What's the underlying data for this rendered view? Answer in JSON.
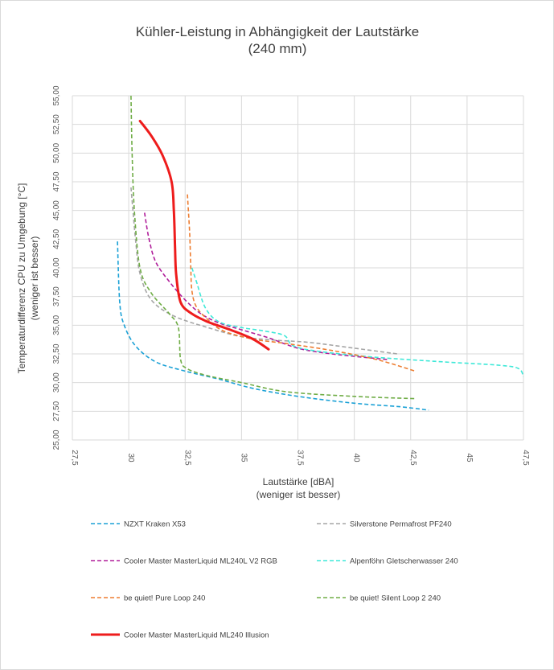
{
  "chart_data": {
    "type": "line",
    "title": "Kühler-Leistung in Abhängigkeit der Lautstärke",
    "subtitle": "(240 mm)",
    "xlabel": "Lautstärke [dBA]",
    "xlabel_note": "(weniger ist besser)",
    "ylabel": "Temperaturdifferenz  CPU zu Umgebung  [°C]",
    "ylabel_note": "(weniger ist besser)",
    "xlim": [
      27.5,
      47.5
    ],
    "ylim": [
      25,
      55
    ],
    "x_ticks": [
      "27,5",
      "30",
      "32,5",
      "35",
      "37,5",
      "40",
      "42,5",
      "45",
      "47,5"
    ],
    "y_ticks": [
      "25,00",
      "27,50",
      "30,00",
      "32,50",
      "35,00",
      "37,50",
      "40,00",
      "42,50",
      "45,00",
      "47,50",
      "50,00",
      "52,50",
      "55,00"
    ],
    "grid": true,
    "legend_position": "bottom",
    "series": [
      {
        "name": "NZXT Kraken X53",
        "color": "#1ba1d6",
        "dash": true,
        "x": [
          29.5,
          29.6,
          29.8,
          30.3,
          31.2,
          32.5,
          34.0,
          35.5,
          37.5,
          40.0,
          42.0,
          43.3
        ],
        "y": [
          42.3,
          37.0,
          35.0,
          33.2,
          31.8,
          31.0,
          30.3,
          29.5,
          28.8,
          28.2,
          27.9,
          27.6
        ]
      },
      {
        "name": "Silverstone Permafrost PF240",
        "color": "#a6a6a6",
        "dash": true,
        "x": [
          30.1,
          30.3,
          30.5,
          31.0,
          32.0,
          33.5,
          35.0,
          36.5,
          38.0,
          40.0,
          41.9
        ],
        "y": [
          47.0,
          42.5,
          39.5,
          37.2,
          35.8,
          34.8,
          34.0,
          33.7,
          33.5,
          33.0,
          32.5
        ]
      },
      {
        "name": "Cooler Master MasterLiquid ML240L V2 RGB",
        "color": "#b01e9a",
        "dash": true,
        "x": [
          30.7,
          30.9,
          31.2,
          31.8,
          32.5,
          33.2,
          34.0,
          35.0,
          36.2,
          37.5,
          39.0,
          41.5
        ],
        "y": [
          44.8,
          42.5,
          40.5,
          38.8,
          37.2,
          36.0,
          35.2,
          34.6,
          33.9,
          33.0,
          32.5,
          32.0
        ]
      },
      {
        "name": "Alpenföhn Gletscherwasser 240",
        "color": "#3ee8d8",
        "dash": true,
        "x": [
          32.8,
          33.0,
          33.4,
          34.0,
          35.0,
          36.0,
          36.9,
          37.3,
          38.5,
          41.0,
          44.0,
          46.5,
          47.3,
          47.5
        ],
        "y": [
          40.0,
          38.8,
          36.5,
          35.3,
          34.8,
          34.5,
          34.1,
          33.2,
          32.7,
          32.2,
          31.8,
          31.5,
          31.2,
          30.5
        ]
      },
      {
        "name": "be quiet! Pure Loop 240",
        "color": "#ed7d31",
        "dash": true,
        "x": [
          32.6,
          32.7,
          32.75,
          32.8,
          33.0,
          33.5,
          34.2,
          35.5,
          37.0,
          39.0,
          41.0,
          42.7
        ],
        "y": [
          46.4,
          43.0,
          40.0,
          38.0,
          36.6,
          35.5,
          34.5,
          33.8,
          33.4,
          32.8,
          32.0,
          31.0
        ]
      },
      {
        "name": "be quiet! Silent Loop 2 240",
        "color": "#70ad47",
        "dash": true,
        "x": [
          30.1,
          30.15,
          30.25,
          30.5,
          31.0,
          31.8,
          32.2,
          32.3,
          32.6,
          33.5,
          35.0,
          37.0,
          40.0,
          42.7
        ],
        "y": [
          55.0,
          50.0,
          45.0,
          40.0,
          37.8,
          36.0,
          34.8,
          32.0,
          31.2,
          30.6,
          30.0,
          29.2,
          28.8,
          28.6
        ]
      },
      {
        "name": "Cooler Master MasterLiquid ML240 Illusion",
        "color": "#ee1c1c",
        "dash": false,
        "x": [
          30.5,
          31.0,
          31.5,
          31.9,
          32.0,
          32.05,
          32.1,
          32.3,
          32.8,
          33.5,
          34.5,
          35.5,
          36.2
        ],
        "y": [
          52.8,
          51.5,
          49.8,
          47.5,
          45.0,
          42.0,
          39.5,
          37.0,
          36.0,
          35.3,
          34.6,
          33.8,
          32.9
        ]
      }
    ]
  }
}
